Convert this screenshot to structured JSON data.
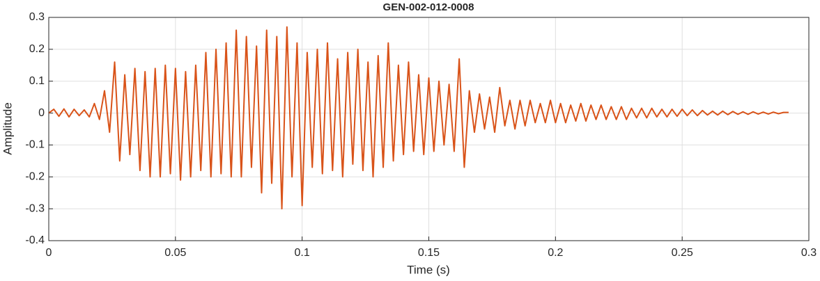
{
  "chart_data": {
    "type": "line",
    "title": "GEN-002-012-0008",
    "x_label": "Time (s)",
    "y_label": "Amplitude",
    "x": [
      0,
      0.002,
      0.004,
      0.006,
      0.008,
      0.01,
      0.012,
      0.014,
      0.016,
      0.018,
      0.02,
      0.022,
      0.024,
      0.026,
      0.028,
      0.03,
      0.032,
      0.034,
      0.036,
      0.038,
      0.04,
      0.042,
      0.044,
      0.046,
      0.048,
      0.05,
      0.052,
      0.054,
      0.056,
      0.058,
      0.06,
      0.062,
      0.064,
      0.066,
      0.068,
      0.07,
      0.072,
      0.074,
      0.076,
      0.078,
      0.08,
      0.082,
      0.084,
      0.086,
      0.088,
      0.09,
      0.092,
      0.094,
      0.096,
      0.098,
      0.1,
      0.102,
      0.104,
      0.106,
      0.108,
      0.11,
      0.112,
      0.114,
      0.116,
      0.118,
      0.12,
      0.122,
      0.124,
      0.126,
      0.128,
      0.13,
      0.132,
      0.134,
      0.136,
      0.138,
      0.14,
      0.142,
      0.144,
      0.146,
      0.148,
      0.15,
      0.152,
      0.154,
      0.156,
      0.158,
      0.16,
      0.162,
      0.164,
      0.166,
      0.168,
      0.17,
      0.172,
      0.174,
      0.176,
      0.178,
      0.18,
      0.182,
      0.184,
      0.186,
      0.188,
      0.19,
      0.192,
      0.194,
      0.196,
      0.198,
      0.2,
      0.202,
      0.204,
      0.206,
      0.208,
      0.21,
      0.212,
      0.214,
      0.216,
      0.218,
      0.22,
      0.222,
      0.224,
      0.226,
      0.228,
      0.23,
      0.232,
      0.234,
      0.236,
      0.238,
      0.24,
      0.242,
      0.244,
      0.246,
      0.248,
      0.25,
      0.252,
      0.254,
      0.256,
      0.258,
      0.26,
      0.262,
      0.264,
      0.266,
      0.268,
      0.27,
      0.272,
      0.274,
      0.276,
      0.278,
      0.28,
      0.282,
      0.284,
      0.286,
      0.288,
      0.29,
      0.292
    ],
    "series": [
      {
        "color": "#d95319",
        "values": [
          0,
          0.012,
          -0.01,
          0.013,
          -0.012,
          0.012,
          -0.008,
          0.01,
          -0.012,
          0.03,
          -0.02,
          0.07,
          -0.06,
          0.16,
          -0.15,
          0.12,
          -0.13,
          0.14,
          -0.18,
          0.13,
          -0.2,
          0.14,
          -0.2,
          0.15,
          -0.19,
          0.14,
          -0.21,
          0.13,
          -0.2,
          0.15,
          -0.18,
          0.19,
          -0.2,
          0.2,
          -0.19,
          0.22,
          -0.2,
          0.26,
          -0.2,
          0.24,
          -0.17,
          0.21,
          -0.25,
          0.26,
          -0.22,
          0.24,
          -0.3,
          0.27,
          -0.2,
          0.22,
          -0.29,
          0.19,
          -0.17,
          0.2,
          -0.19,
          0.22,
          -0.18,
          0.17,
          -0.2,
          0.19,
          -0.16,
          0.2,
          -0.18,
          0.16,
          -0.2,
          0.18,
          -0.17,
          0.22,
          -0.15,
          0.15,
          -0.13,
          0.16,
          -0.12,
          0.12,
          -0.13,
          0.11,
          -0.12,
          0.1,
          -0.1,
          0.09,
          -0.12,
          0.17,
          -0.17,
          0.07,
          -0.06,
          0.06,
          -0.05,
          0.05,
          -0.06,
          0.08,
          -0.04,
          0.04,
          -0.05,
          0.04,
          -0.04,
          0.04,
          -0.03,
          0.03,
          -0.03,
          0.04,
          -0.03,
          0.03,
          -0.03,
          0.025,
          -0.025,
          0.03,
          -0.025,
          0.025,
          -0.02,
          0.025,
          -0.02,
          0.02,
          -0.02,
          0.02,
          -0.02,
          0.015,
          -0.015,
          0.015,
          -0.015,
          0.015,
          -0.012,
          0.012,
          -0.012,
          0.012,
          -0.01,
          0.012,
          -0.008,
          0.01,
          -0.008,
          0.008,
          -0.006,
          0.006,
          -0.006,
          0.006,
          -0.005,
          0.005,
          -0.004,
          0.004,
          -0.004,
          0.004,
          -0.003,
          0.003,
          -0.003,
          0.003,
          -0.002,
          0.002,
          0.002
        ]
      }
    ],
    "xlim": [
      0,
      0.3
    ],
    "xticks": [
      0,
      0.05,
      0.1,
      0.15,
      0.2,
      0.25,
      0.3
    ],
    "ylim": [
      -0.4,
      0.3
    ],
    "yticks": [
      -0.4,
      -0.3,
      -0.2,
      -0.1,
      0,
      0.1,
      0.2,
      0.3
    ],
    "grid": true
  }
}
